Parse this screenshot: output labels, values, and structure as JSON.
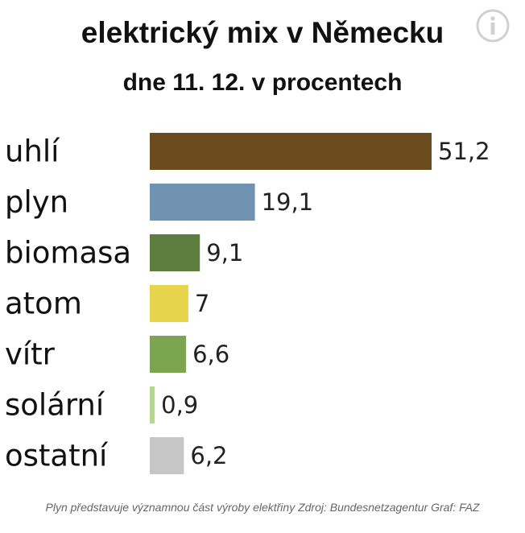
{
  "chart_data": {
    "type": "bar",
    "orientation": "horizontal",
    "title": "elektrický mix v Německu",
    "subtitle": "dne 11. 12. v procentech",
    "categories": [
      "uhlí",
      "plyn",
      "biomasa",
      "atom",
      "vítr",
      "solární",
      "ostatní"
    ],
    "values": [
      51.2,
      19.1,
      9.1,
      7,
      6.6,
      0.9,
      6.2
    ],
    "value_labels": [
      "51,2",
      "19,1",
      "9,1",
      "7",
      "6,6",
      "0,9",
      "6,2"
    ],
    "colors": [
      "#6b4c1f",
      "#6f93b0",
      "#5b7d3e",
      "#e6d44a",
      "#7ba551",
      "#b4d88f",
      "#c6c6c6"
    ],
    "xlim": [
      0,
      51.2
    ],
    "grid": false,
    "legend": "none",
    "footnote": "Plyn představuje významnou část výroby elektřiny Zdroj: Bundesnetzagentur Graf: FAZ"
  },
  "icons": {
    "info": "info-icon"
  }
}
